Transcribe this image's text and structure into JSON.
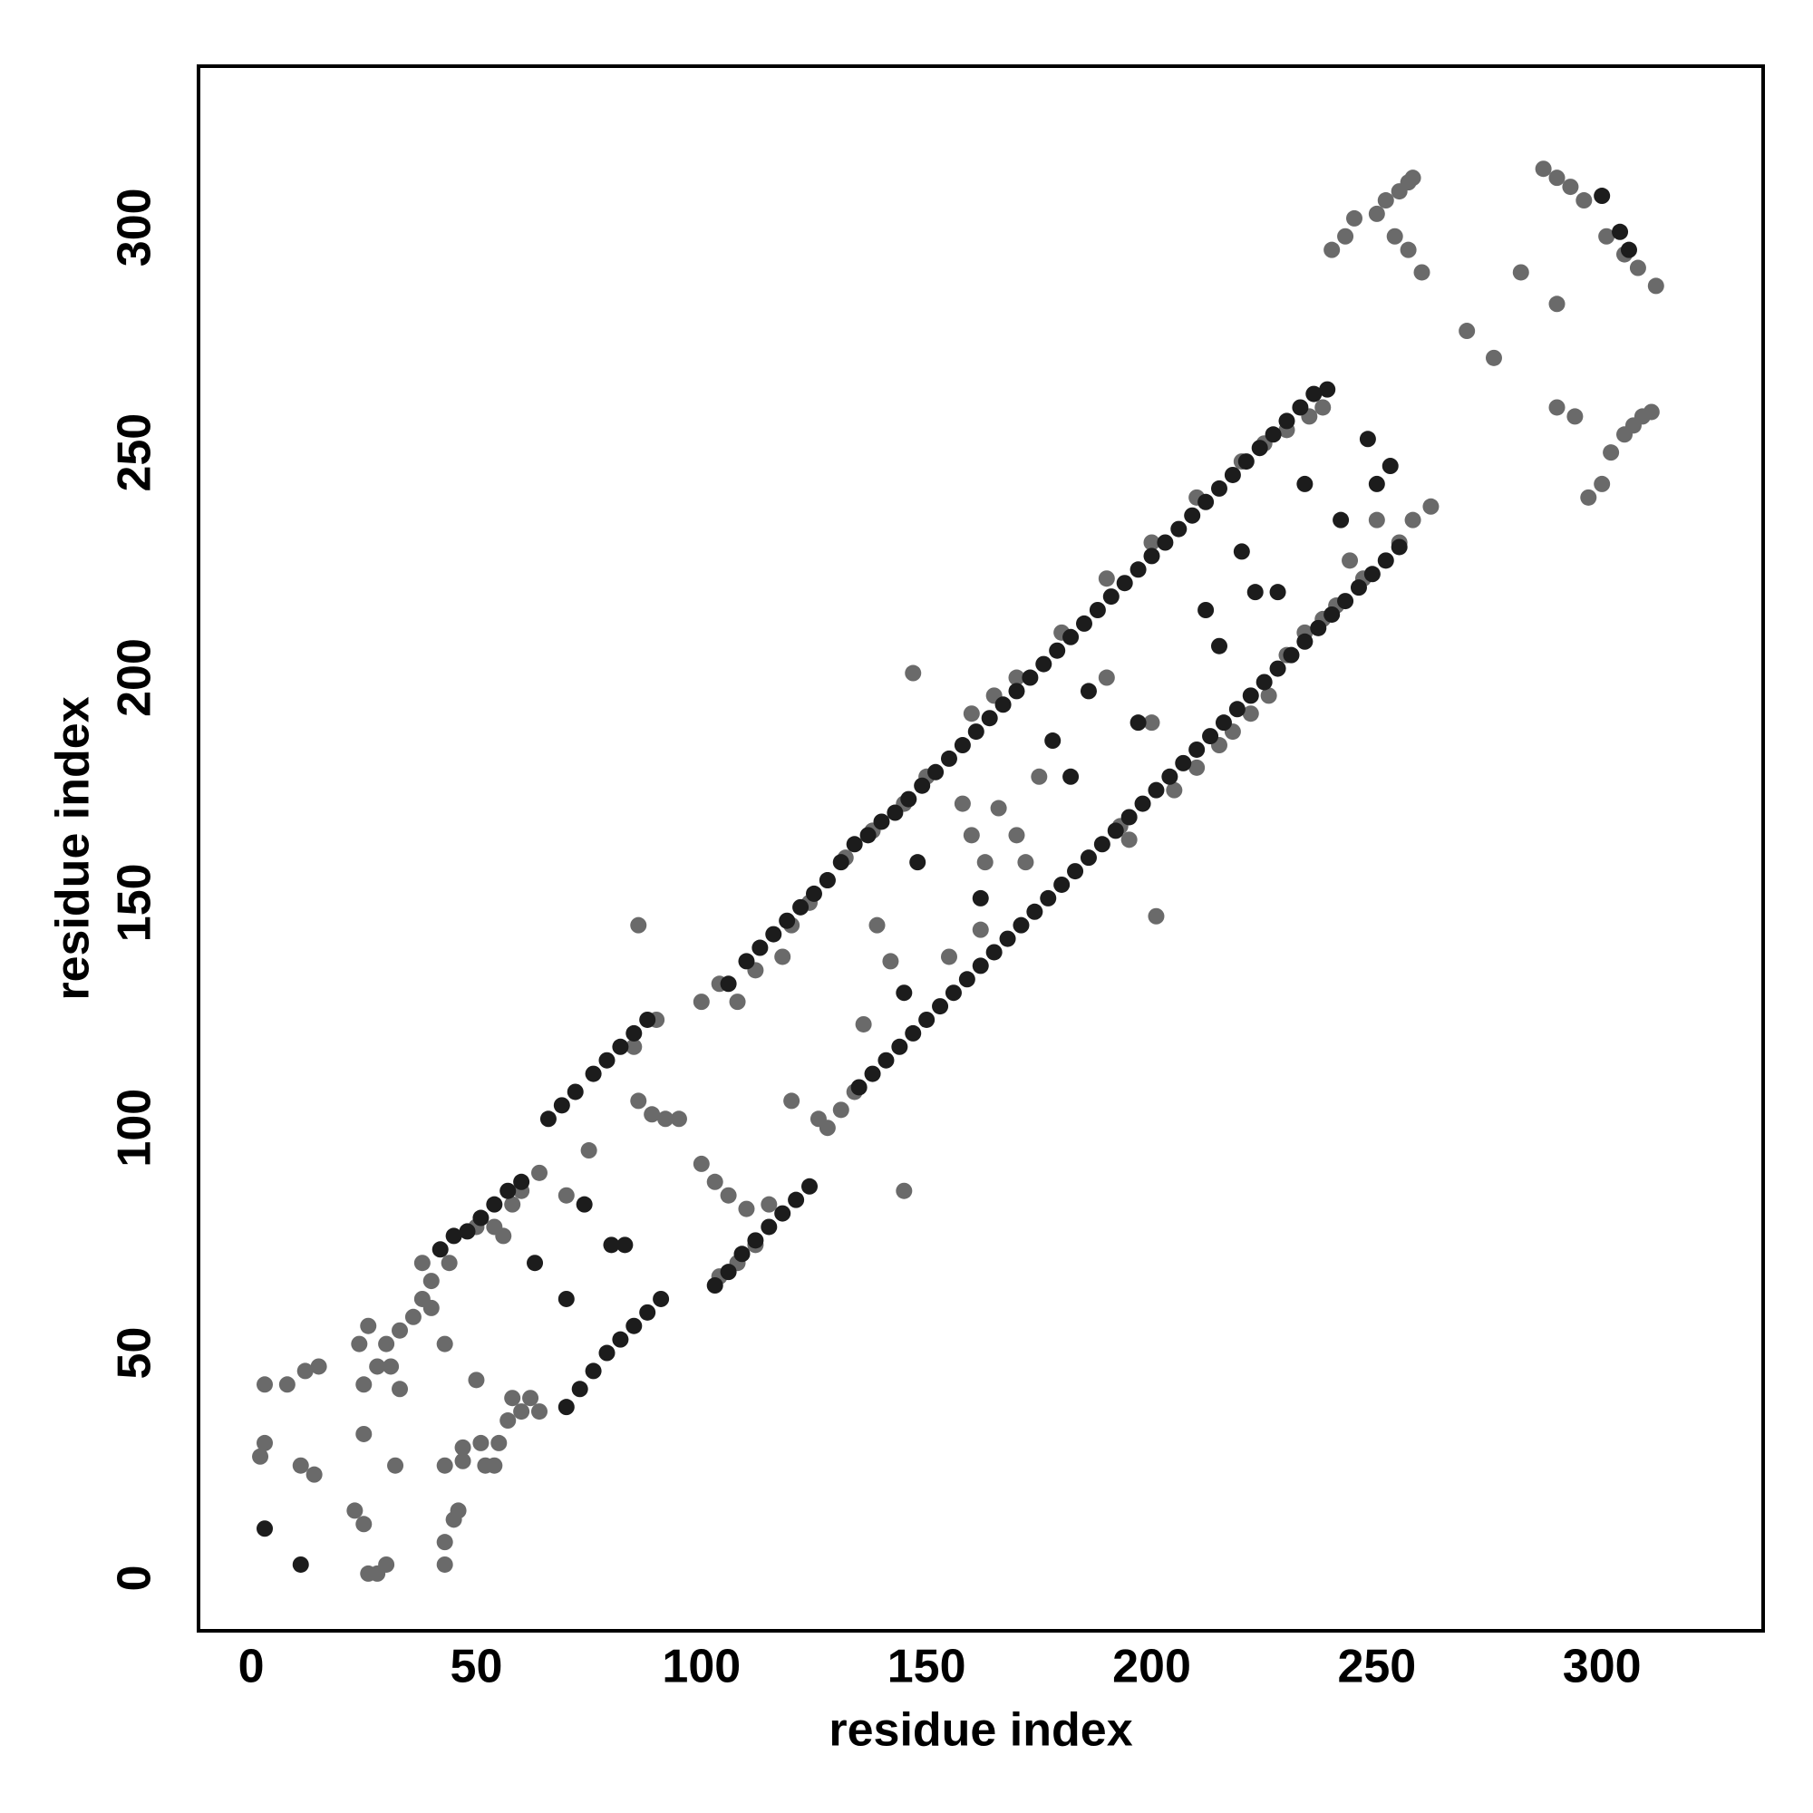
{
  "chart_data": {
    "type": "scatter",
    "xlabel": "residue index",
    "ylabel": "residue index",
    "xlim": [
      -11.7,
      335.8
    ],
    "ylim": [
      -11.7,
      335.8
    ],
    "xticks": [
      0,
      50,
      100,
      150,
      200,
      250,
      300
    ],
    "yticks": [
      0,
      50,
      100,
      150,
      200,
      250,
      300
    ],
    "grid": false,
    "series": [
      {
        "color": "#6a6a6a",
        "x": [
          2,
          3,
          3,
          8,
          11,
          12,
          15,
          14,
          23,
          25,
          26,
          28,
          30,
          31,
          25,
          25,
          24,
          26,
          28,
          30,
          33,
          36,
          32,
          33,
          38,
          40,
          43,
          43,
          43,
          43,
          45,
          46,
          47,
          47,
          50,
          51,
          52,
          54,
          55,
          57,
          58,
          60,
          62,
          64,
          64,
          58,
          56,
          40,
          38,
          54,
          44,
          50,
          60,
          70,
          75,
          85,
          90,
          86,
          86,
          89,
          92,
          95,
          100,
          104,
          108,
          112,
          118,
          100,
          103,
          106,
          110,
          115,
          104,
          108,
          112,
          120,
          126,
          128,
          131,
          134,
          136,
          139,
          142,
          145,
          147,
          155,
          158,
          160,
          162,
          163,
          166,
          170,
          172,
          175,
          190,
          193,
          195,
          200,
          201,
          205,
          210,
          215,
          218,
          222,
          226,
          230,
          234,
          238,
          241,
          244,
          247,
          250,
          255,
          258,
          262,
          160,
          165,
          170,
          180,
          190,
          200,
          210,
          220,
          225,
          230,
          235,
          238,
          150,
          145,
          138,
          132,
          128,
          124,
          120,
          240,
          243,
          245,
          250,
          252,
          255,
          257,
          258,
          254,
          257,
          260,
          270,
          276,
          282,
          287,
          290,
          293,
          296,
          301,
          305,
          308,
          312,
          290,
          290,
          294,
          297,
          300,
          302,
          305,
          307,
          309,
          311
        ],
        "values": [
          27,
          30,
          43,
          43,
          25,
          46,
          47,
          23,
          15,
          12,
          1,
          1,
          3,
          47,
          32,
          43,
          52,
          56,
          47,
          52,
          55,
          58,
          25,
          42,
          62,
          60,
          52,
          25,
          3,
          8,
          13,
          15,
          29,
          26,
          44,
          30,
          25,
          25,
          30,
          35,
          40,
          37,
          40,
          37,
          90,
          83,
          76,
          66,
          70,
          78,
          70,
          78,
          86,
          85,
          95,
          118,
          124,
          145,
          106,
          103,
          102,
          102,
          128,
          132,
          128,
          135,
          138,
          92,
          88,
          85,
          82,
          83,
          67,
          70,
          74,
          106,
          102,
          100,
          104,
          108,
          123,
          145,
          137,
          86,
          201,
          138,
          172,
          165,
          144,
          159,
          171,
          165,
          159,
          178,
          200,
          167,
          164,
          190,
          147,
          175,
          180,
          185,
          188,
          192,
          196,
          205,
          210,
          213,
          216,
          226,
          222,
          235,
          230,
          235,
          238,
          192,
          196,
          200,
          210,
          222,
          230,
          240,
          248,
          252,
          255,
          258,
          260,
          178,
          172,
          166,
          160,
          155,
          150,
          145,
          295,
          298,
          302,
          303,
          306,
          308,
          310,
          311,
          298,
          295,
          290,
          277,
          271,
          290,
          313,
          311,
          309,
          306,
          298,
          294,
          291,
          287,
          283,
          260,
          258,
          240,
          243,
          250,
          254,
          256,
          258,
          259
        ]
      },
      {
        "color": "#1c1c1c",
        "x": [
          42,
          45,
          48,
          51,
          54,
          57,
          60,
          66,
          69,
          72,
          76,
          79,
          82,
          85,
          88,
          106,
          110,
          113,
          116,
          119,
          122,
          125,
          128,
          131,
          134,
          137,
          140,
          143,
          146,
          149,
          152,
          155,
          158,
          161,
          164,
          167,
          170,
          173,
          176,
          179,
          182,
          185,
          188,
          191,
          194,
          197,
          200,
          203,
          206,
          209,
          212,
          215,
          218,
          221,
          224,
          227,
          230,
          233,
          236,
          239,
          70,
          73,
          76,
          79,
          82,
          85,
          88,
          91,
          103,
          106,
          109,
          112,
          115,
          118,
          121,
          124,
          135,
          138,
          141,
          144,
          147,
          150,
          153,
          156,
          159,
          162,
          165,
          168,
          171,
          174,
          177,
          180,
          183,
          186,
          189,
          192,
          195,
          198,
          201,
          204,
          207,
          210,
          213,
          216,
          219,
          222,
          225,
          228,
          231,
          234,
          237,
          240,
          243,
          246,
          249,
          252,
          255,
          3,
          11,
          63,
          70,
          74,
          80,
          83,
          145,
          148,
          162,
          178,
          182,
          186,
          197,
          212,
          215,
          220,
          223,
          228,
          234,
          242,
          248,
          253,
          250,
          300,
          304,
          306
        ],
        "values": [
          73,
          76,
          77,
          80,
          83,
          86,
          88,
          102,
          105,
          108,
          112,
          115,
          118,
          121,
          124,
          132,
          137,
          140,
          143,
          146,
          149,
          152,
          155,
          159,
          163,
          165,
          168,
          170,
          173,
          176,
          179,
          182,
          185,
          188,
          191,
          194,
          197,
          200,
          203,
          206,
          209,
          212,
          215,
          218,
          221,
          224,
          227,
          230,
          233,
          236,
          239,
          242,
          245,
          248,
          251,
          254,
          257,
          260,
          263,
          264,
          38,
          42,
          46,
          50,
          53,
          56,
          59,
          62,
          65,
          68,
          72,
          75,
          78,
          81,
          84,
          87,
          109,
          112,
          115,
          118,
          121,
          124,
          127,
          130,
          133,
          136,
          139,
          142,
          145,
          148,
          151,
          154,
          157,
          160,
          163,
          166,
          169,
          172,
          175,
          178,
          181,
          184,
          187,
          190,
          193,
          196,
          199,
          202,
          205,
          208,
          211,
          214,
          217,
          220,
          223,
          226,
          229,
          11,
          3,
          70,
          62,
          83,
          74,
          74,
          130,
          159,
          151,
          186,
          178,
          197,
          190,
          215,
          207,
          228,
          219,
          219,
          243,
          235,
          253,
          247,
          243,
          307,
          299,
          295
        ]
      }
    ]
  }
}
